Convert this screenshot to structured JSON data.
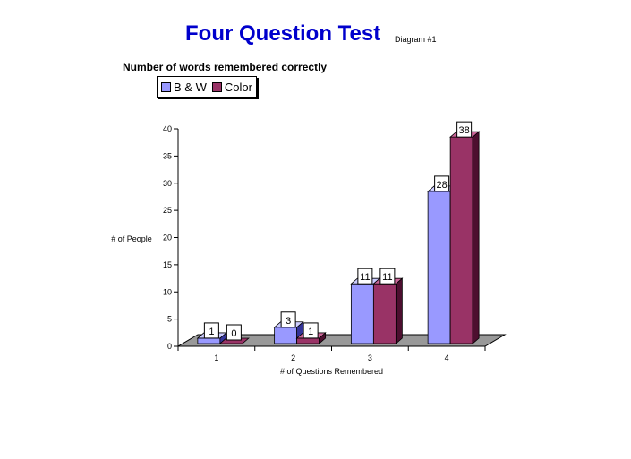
{
  "title": "Four Question Test",
  "tag": "Diagram #1",
  "subtitle": "Number of words remembered correctly",
  "colors": {
    "title": "#0000cc",
    "bw_front": "#9999ff",
    "bw_side": "#333399",
    "bw_top": "#ccccff",
    "color_front": "#993366",
    "color_side": "#4d0f2f",
    "color_top": "#cc6699",
    "floor": "#999999"
  },
  "chart_data": {
    "type": "bar",
    "categories": [
      "1",
      "2",
      "3",
      "4"
    ],
    "series": [
      {
        "name": "B & W",
        "values": [
          1,
          3,
          11,
          28
        ]
      },
      {
        "name": "Color",
        "values": [
          0,
          1,
          11,
          38
        ]
      }
    ],
    "xlabel": "# of Questions Remembered",
    "ylabel": "# of People",
    "ylim": [
      0,
      40
    ],
    "yticks": [
      "0",
      "5",
      "10",
      "15",
      "20",
      "25",
      "30",
      "35",
      "40"
    ],
    "legend": "top-left",
    "grid": false,
    "data_labels": true
  }
}
